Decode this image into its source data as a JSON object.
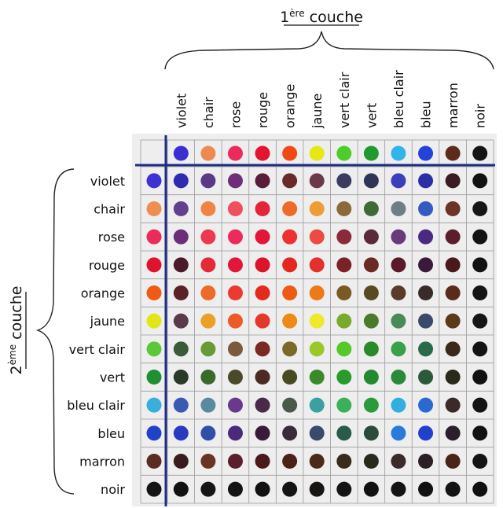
{
  "top_axis": {
    "label": "1",
    "superscript": "ère",
    "label_rest": " couche"
  },
  "side_axis": {
    "label": "2",
    "superscript": "ème",
    "label_rest": " couche"
  },
  "columns": [
    "violet",
    "chair",
    "rose",
    "rouge",
    "orange",
    "jaune",
    "vert clair",
    "vert",
    "bleu clair",
    "bleu",
    "marron",
    "noir"
  ],
  "rows": [
    "violet",
    "chair",
    "rose",
    "rouge",
    "orange",
    "jaune",
    "vert clair",
    "vert",
    "bleu clair",
    "bleu",
    "marron",
    "noir"
  ],
  "header_row_colors": [
    "#3a2fd0",
    "#ef8a4f",
    "#ec2a5b",
    "#e3142f",
    "#f04a12",
    "#e6e812",
    "#4ccd2a",
    "#1f9a2f",
    "#30b5ea",
    "#2342d8",
    "#5e2a1c",
    "#141414"
  ],
  "header_col_colors": [
    "#3c33d2",
    "#ee8e52",
    "#ea2c5a",
    "#e0132c",
    "#ef5a15",
    "#e3e616",
    "#5bc83a",
    "#1f8f33",
    "#3aaedc",
    "#2142c8",
    "#5a2c22",
    "#151515"
  ],
  "cells": [
    [
      "#2e2bb0",
      "#5a3a86",
      "#6e2f78",
      "#5b1c3a",
      "#6a2a2a",
      "#6a3a4a",
      "#3c3b62",
      "#2f3554",
      "#3b3fb8",
      "#2a2fa8",
      "#3a1c24",
      "#121212"
    ],
    [
      "#60418c",
      "#ee8546",
      "#ef4f5e",
      "#e3243a",
      "#ec6b2a",
      "#ec9d38",
      "#8a6a3a",
      "#3f6a38",
      "#6e7e86",
      "#355ac4",
      "#6b3426",
      "#161616"
    ],
    [
      "#6b2f78",
      "#ec3850",
      "#ed2a5c",
      "#e2163a",
      "#ee3030",
      "#ec4a42",
      "#8a2a3a",
      "#5a2a3a",
      "#6a3a7a",
      "#4a2a80",
      "#5a1f2a",
      "#141414"
    ],
    [
      "#4a1a2a",
      "#e42a34",
      "#e2163a",
      "#dc1429",
      "#e4281e",
      "#e4302a",
      "#7a2226",
      "#6a2a24",
      "#5a1a2a",
      "#3a1a3a",
      "#4a1a1a",
      "#121212"
    ],
    [
      "#5a2228",
      "#ec6a2a",
      "#ec3a32",
      "#e42a1e",
      "#ee5a14",
      "#ec7a16",
      "#7a5a22",
      "#5a4a22",
      "#5a3a2a",
      "#3a2a2a",
      "#5a2a1a",
      "#141414"
    ],
    [
      "#5a3a4a",
      "#e8a028",
      "#ec5a2a",
      "#e4382a",
      "#ec8a18",
      "#ecea2a",
      "#7aaa2a",
      "#4a7a2a",
      "#4a8a5a",
      "#3a4a6a",
      "#5a3a1a",
      "#161616"
    ],
    [
      "#3a5a3a",
      "#6a9a38",
      "#7a5a3a",
      "#7a2a24",
      "#7a6a2a",
      "#9ac82a",
      "#56c82a",
      "#2a8a2a",
      "#3aa04a",
      "#2a6a4a",
      "#3a2a1a",
      "#141414"
    ],
    [
      "#2a3a2a",
      "#3a6a2a",
      "#4a4a2a",
      "#4a2a22",
      "#4a4a22",
      "#3a8a2a",
      "#2a9a2a",
      "#228a2e",
      "#2a8a3a",
      "#2a5a3a",
      "#2a2a1a",
      "#121212"
    ],
    [
      "#3a5ab0",
      "#5a8aa0",
      "#6a3a8a",
      "#4a2a4a",
      "#4a5a4a",
      "#3aa0a0",
      "#3ab05a",
      "#2a9a3a",
      "#32aee0",
      "#2a6ad0",
      "#3a2a2a",
      "#141414"
    ],
    [
      "#2a3ac0",
      "#3050a8",
      "#4a2a7a",
      "#3a1a3a",
      "#3a2a3a",
      "#3a4a6a",
      "#2a5a4a",
      "#2a4a3a",
      "#2a7ad8",
      "#2240cc",
      "#2a1f2a",
      "#121212"
    ],
    [
      "#3a1c20",
      "#6a3424",
      "#5a1f2a",
      "#4a1a1a",
      "#4a2218",
      "#4a2a1a",
      "#3a2a1a",
      "#2a2a1a",
      "#3a2a2a",
      "#2a1f24",
      "#4a2418",
      "#141414"
    ],
    [
      "#121212",
      "#161616",
      "#141414",
      "#121212",
      "#141414",
      "#181612",
      "#141414",
      "#121212",
      "#141414",
      "#121212",
      "#141414",
      "#101010"
    ]
  ]
}
